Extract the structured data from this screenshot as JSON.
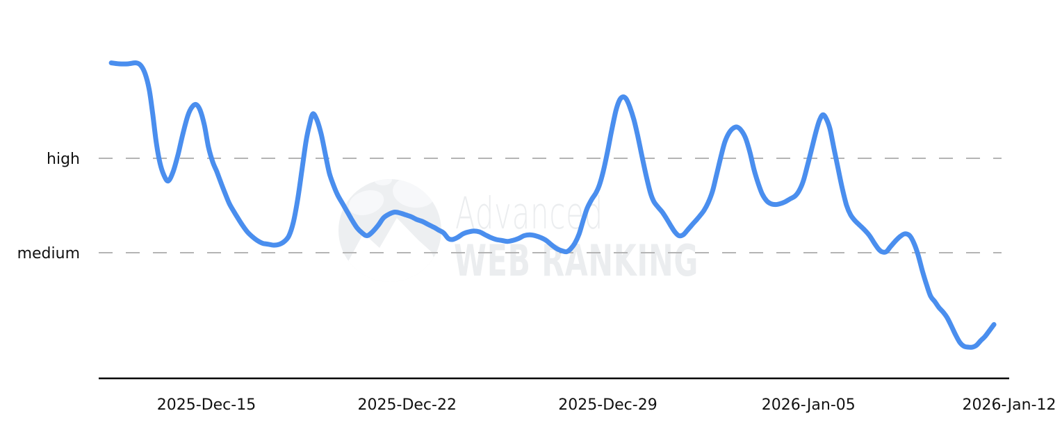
{
  "watermark": {
    "line1": "Advanced",
    "line2": "WEB RANKING",
    "logo": "globe-mountain-logo",
    "color": "#ebedef"
  },
  "colors": {
    "line": "#4a8eee",
    "grid": "#b4b4b4",
    "axis": "#000000",
    "label": "#111111"
  },
  "chart_data": {
    "type": "line",
    "title": "",
    "xlabel": "",
    "ylabel": "",
    "legend": false,
    "grid": "horizontal dashed gridlines at 'high' and 'medium' levels",
    "x_axis": {
      "unit": "days relative to 2025-Dec-15",
      "ticks": [
        {
          "label": "2025-Dec-15",
          "d": 0
        },
        {
          "label": "2025-Dec-22",
          "d": 7
        },
        {
          "label": "2025-Dec-29",
          "d": 14
        },
        {
          "label": "2026-Jan-05",
          "d": 21
        },
        {
          "label": "2026-Jan-12",
          "d": 28
        }
      ]
    },
    "y_axis": {
      "scale_note": "qualitative interest scale: medium = 1, high = 2 (curve starts near 3 and ends near 0)",
      "labels": [
        {
          "label": "high",
          "value": 2
        },
        {
          "label": "medium",
          "value": 1
        }
      ]
    },
    "series": [
      {
        "name": "trend",
        "color": "#4a8eee",
        "points": [
          [
            -3.32,
            3.01
          ],
          [
            -3.03,
            3.0
          ],
          [
            -2.74,
            3.0
          ],
          [
            -2.45,
            3.01
          ],
          [
            -2.28,
            2.98
          ],
          [
            -2.13,
            2.89
          ],
          [
            -1.99,
            2.72
          ],
          [
            -1.87,
            2.46
          ],
          [
            -1.75,
            2.17
          ],
          [
            -1.62,
            1.95
          ],
          [
            -1.48,
            1.82
          ],
          [
            -1.33,
            1.76
          ],
          [
            -1.16,
            1.86
          ],
          [
            -0.99,
            2.04
          ],
          [
            -0.82,
            2.26
          ],
          [
            -0.65,
            2.45
          ],
          [
            -0.51,
            2.54
          ],
          [
            -0.36,
            2.57
          ],
          [
            -0.22,
            2.51
          ],
          [
            -0.07,
            2.35
          ],
          [
            0.07,
            2.12
          ],
          [
            0.22,
            1.96
          ],
          [
            0.36,
            1.86
          ],
          [
            0.51,
            1.74
          ],
          [
            0.65,
            1.63
          ],
          [
            0.8,
            1.52
          ],
          [
            0.95,
            1.44
          ],
          [
            1.09,
            1.37
          ],
          [
            1.26,
            1.29
          ],
          [
            1.43,
            1.22
          ],
          [
            1.6,
            1.17
          ],
          [
            1.77,
            1.13
          ],
          [
            1.96,
            1.1
          ],
          [
            2.16,
            1.09
          ],
          [
            2.35,
            1.08
          ],
          [
            2.55,
            1.09
          ],
          [
            2.72,
            1.12
          ],
          [
            2.88,
            1.18
          ],
          [
            3.03,
            1.32
          ],
          [
            3.18,
            1.56
          ],
          [
            3.32,
            1.85
          ],
          [
            3.47,
            2.17
          ],
          [
            3.59,
            2.35
          ],
          [
            3.71,
            2.47
          ],
          [
            3.85,
            2.41
          ],
          [
            4.0,
            2.26
          ],
          [
            4.15,
            2.04
          ],
          [
            4.29,
            1.84
          ],
          [
            4.44,
            1.71
          ],
          [
            4.58,
            1.61
          ],
          [
            4.73,
            1.53
          ],
          [
            4.9,
            1.44
          ],
          [
            5.07,
            1.35
          ],
          [
            5.26,
            1.26
          ],
          [
            5.43,
            1.21
          ],
          [
            5.6,
            1.18
          ],
          [
            5.79,
            1.22
          ],
          [
            5.99,
            1.29
          ],
          [
            6.18,
            1.37
          ],
          [
            6.38,
            1.41
          ],
          [
            6.57,
            1.43
          ],
          [
            6.76,
            1.42
          ],
          [
            6.96,
            1.4
          ],
          [
            7.15,
            1.38
          ],
          [
            7.35,
            1.35
          ],
          [
            7.54,
            1.33
          ],
          [
            7.73,
            1.3
          ],
          [
            7.93,
            1.27
          ],
          [
            8.1,
            1.24
          ],
          [
            8.27,
            1.21
          ],
          [
            8.44,
            1.15
          ],
          [
            8.58,
            1.14
          ],
          [
            8.75,
            1.16
          ],
          [
            8.95,
            1.2
          ],
          [
            9.14,
            1.22
          ],
          [
            9.33,
            1.23
          ],
          [
            9.53,
            1.22
          ],
          [
            9.72,
            1.19
          ],
          [
            9.92,
            1.16
          ],
          [
            10.11,
            1.14
          ],
          [
            10.3,
            1.13
          ],
          [
            10.5,
            1.12
          ],
          [
            10.69,
            1.13
          ],
          [
            10.88,
            1.15
          ],
          [
            11.08,
            1.18
          ],
          [
            11.27,
            1.19
          ],
          [
            11.47,
            1.18
          ],
          [
            11.66,
            1.16
          ],
          [
            11.85,
            1.13
          ],
          [
            12.05,
            1.08
          ],
          [
            12.24,
            1.04
          ],
          [
            12.41,
            1.02
          ],
          [
            12.56,
            1.01
          ],
          [
            12.7,
            1.04
          ],
          [
            12.85,
            1.1
          ],
          [
            13.0,
            1.2
          ],
          [
            13.14,
            1.34
          ],
          [
            13.28,
            1.47
          ],
          [
            13.43,
            1.56
          ],
          [
            13.58,
            1.63
          ],
          [
            13.7,
            1.71
          ],
          [
            13.84,
            1.86
          ],
          [
            13.99,
            2.07
          ],
          [
            14.13,
            2.29
          ],
          [
            14.28,
            2.5
          ],
          [
            14.4,
            2.61
          ],
          [
            14.52,
            2.65
          ],
          [
            14.64,
            2.63
          ],
          [
            14.76,
            2.55
          ],
          [
            14.91,
            2.41
          ],
          [
            15.05,
            2.23
          ],
          [
            15.2,
            2.01
          ],
          [
            15.35,
            1.8
          ],
          [
            15.49,
            1.63
          ],
          [
            15.61,
            1.54
          ],
          [
            15.76,
            1.48
          ],
          [
            15.9,
            1.43
          ],
          [
            16.05,
            1.36
          ],
          [
            16.19,
            1.29
          ],
          [
            16.34,
            1.22
          ],
          [
            16.48,
            1.18
          ],
          [
            16.63,
            1.19
          ],
          [
            16.78,
            1.24
          ],
          [
            16.92,
            1.29
          ],
          [
            17.07,
            1.34
          ],
          [
            17.21,
            1.39
          ],
          [
            17.36,
            1.45
          ],
          [
            17.5,
            1.53
          ],
          [
            17.65,
            1.65
          ],
          [
            17.79,
            1.82
          ],
          [
            17.94,
            2.01
          ],
          [
            18.08,
            2.17
          ],
          [
            18.23,
            2.27
          ],
          [
            18.38,
            2.32
          ],
          [
            18.52,
            2.33
          ],
          [
            18.67,
            2.29
          ],
          [
            18.81,
            2.21
          ],
          [
            18.96,
            2.06
          ],
          [
            19.1,
            1.88
          ],
          [
            19.25,
            1.73
          ],
          [
            19.39,
            1.62
          ],
          [
            19.54,
            1.55
          ],
          [
            19.68,
            1.52
          ],
          [
            19.85,
            1.51
          ],
          [
            20.02,
            1.52
          ],
          [
            20.19,
            1.54
          ],
          [
            20.36,
            1.57
          ],
          [
            20.53,
            1.6
          ],
          [
            20.68,
            1.66
          ],
          [
            20.82,
            1.76
          ],
          [
            20.97,
            1.93
          ],
          [
            21.12,
            2.11
          ],
          [
            21.26,
            2.28
          ],
          [
            21.38,
            2.4
          ],
          [
            21.5,
            2.46
          ],
          [
            21.62,
            2.42
          ],
          [
            21.75,
            2.31
          ],
          [
            21.89,
            2.1
          ],
          [
            22.04,
            1.88
          ],
          [
            22.18,
            1.68
          ],
          [
            22.33,
            1.5
          ],
          [
            22.47,
            1.4
          ],
          [
            22.62,
            1.34
          ],
          [
            22.79,
            1.29
          ],
          [
            22.96,
            1.24
          ],
          [
            23.13,
            1.18
          ],
          [
            23.3,
            1.1
          ],
          [
            23.44,
            1.04
          ],
          [
            23.56,
            1.01
          ],
          [
            23.71,
            1.01
          ],
          [
            23.85,
            1.06
          ],
          [
            24.02,
            1.12
          ],
          [
            24.19,
            1.17
          ],
          [
            24.36,
            1.2
          ],
          [
            24.53,
            1.18
          ],
          [
            24.68,
            1.1
          ],
          [
            24.82,
            0.98
          ],
          [
            24.97,
            0.81
          ],
          [
            25.12,
            0.66
          ],
          [
            25.26,
            0.54
          ],
          [
            25.41,
            0.48
          ],
          [
            25.55,
            0.42
          ],
          [
            25.7,
            0.37
          ],
          [
            25.84,
            0.31
          ],
          [
            25.99,
            0.22
          ],
          [
            26.13,
            0.13
          ],
          [
            26.28,
            0.05
          ],
          [
            26.42,
            0.01
          ],
          [
            26.57,
            0.0
          ],
          [
            26.72,
            0.0
          ],
          [
            26.86,
            0.02
          ],
          [
            27.01,
            0.07
          ],
          [
            27.15,
            0.11
          ],
          [
            27.3,
            0.17
          ],
          [
            27.47,
            0.24
          ]
        ]
      }
    ]
  }
}
